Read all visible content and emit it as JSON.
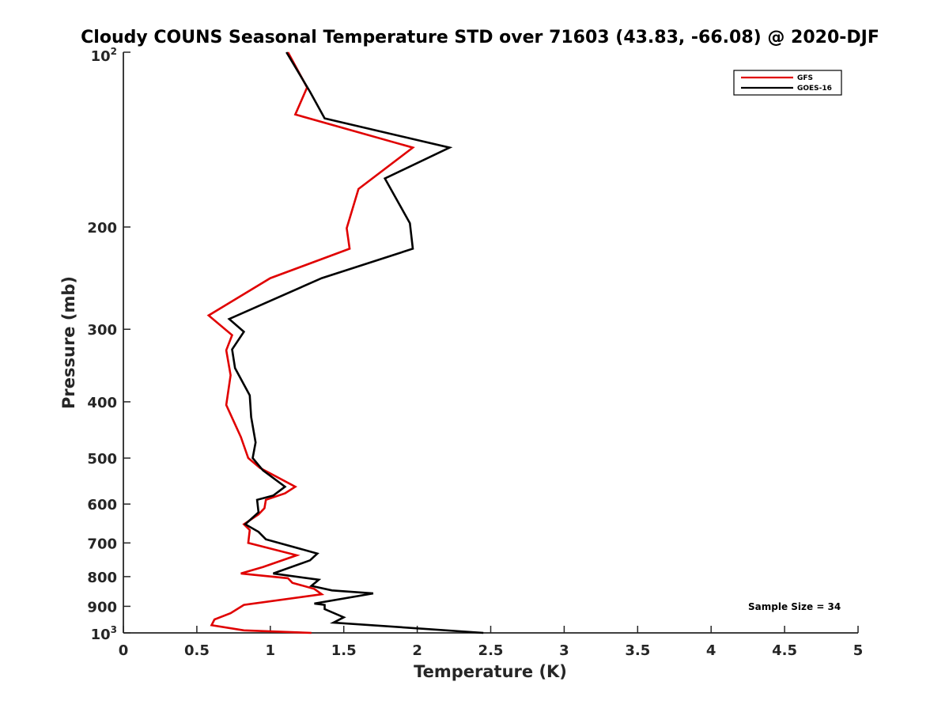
{
  "chart_data": {
    "type": "line",
    "title": "Cloudy COUNS Seasonal Temperature STD over 71603 (43.83, -66.08) @ 2020-DJF",
    "xlabel": "Temperature (K)",
    "ylabel": "Pressure (mb)",
    "xlim": [
      0,
      5
    ],
    "ylim": [
      100,
      1000
    ],
    "yscale": "log",
    "y_reversed": true,
    "x_ticks": [
      0,
      0.5,
      1,
      1.5,
      2,
      2.5,
      3,
      3.5,
      4,
      4.5,
      5
    ],
    "x_tick_labels": [
      "0",
      "0.5",
      "1",
      "1.5",
      "2",
      "2.5",
      "3",
      "3.5",
      "4",
      "4.5",
      "5"
    ],
    "y_ticks": [
      200,
      300,
      400,
      500,
      600,
      700,
      800,
      900
    ],
    "y_tick_labels": [
      "200",
      "300",
      "400",
      "500",
      "600",
      "700",
      "800",
      "900"
    ],
    "y_top_label": {
      "base": "10",
      "exp": "2"
    },
    "y_bottom_label": {
      "base": "10",
      "exp": "3"
    },
    "legend_position": "top-right",
    "annotation": "Sample Size = 34",
    "series": [
      {
        "name": "GFS",
        "color": "#e00000",
        "points": [
          [
            1.12,
            100
          ],
          [
            1.25,
            115
          ],
          [
            1.17,
            128
          ],
          [
            1.97,
            146
          ],
          [
            1.6,
            172
          ],
          [
            1.52,
            201
          ],
          [
            1.54,
            218
          ],
          [
            1.0,
            245
          ],
          [
            0.58,
            284
          ],
          [
            0.74,
            307
          ],
          [
            0.7,
            326
          ],
          [
            0.73,
            360
          ],
          [
            0.7,
            405
          ],
          [
            0.8,
            460
          ],
          [
            0.85,
            500
          ],
          [
            0.93,
            520
          ],
          [
            1.17,
            560
          ],
          [
            1.1,
            575
          ],
          [
            0.97,
            590
          ],
          [
            0.96,
            610
          ],
          [
            0.92,
            625
          ],
          [
            0.82,
            650
          ],
          [
            0.86,
            665
          ],
          [
            0.85,
            700
          ],
          [
            1.18,
            735
          ],
          [
            0.95,
            770
          ],
          [
            0.8,
            790
          ],
          [
            1.12,
            805
          ],
          [
            1.15,
            820
          ],
          [
            1.3,
            840
          ],
          [
            1.35,
            858
          ],
          [
            0.82,
            895
          ],
          [
            0.73,
            925
          ],
          [
            0.62,
            948
          ],
          [
            0.6,
            970
          ],
          [
            0.82,
            990
          ],
          [
            1.28,
            1000
          ]
        ]
      },
      {
        "name": "GOES-16",
        "color": "#000000",
        "points": [
          [
            1.11,
            100
          ],
          [
            1.27,
            117
          ],
          [
            1.37,
            130
          ],
          [
            2.22,
            146
          ],
          [
            1.78,
            165
          ],
          [
            1.95,
            197
          ],
          [
            1.97,
            218
          ],
          [
            1.35,
            245
          ],
          [
            0.72,
            288
          ],
          [
            0.82,
            303
          ],
          [
            0.74,
            325
          ],
          [
            0.76,
            350
          ],
          [
            0.86,
            390
          ],
          [
            0.87,
            425
          ],
          [
            0.9,
            470
          ],
          [
            0.88,
            500
          ],
          [
            0.95,
            525
          ],
          [
            1.1,
            560
          ],
          [
            1.02,
            580
          ],
          [
            0.91,
            590
          ],
          [
            0.92,
            620
          ],
          [
            0.83,
            650
          ],
          [
            0.92,
            670
          ],
          [
            0.97,
            690
          ],
          [
            1.32,
            730
          ],
          [
            1.27,
            750
          ],
          [
            1.02,
            790
          ],
          [
            1.33,
            810
          ],
          [
            1.28,
            830
          ],
          [
            1.42,
            845
          ],
          [
            1.7,
            855
          ],
          [
            1.3,
            890
          ],
          [
            1.37,
            895
          ],
          [
            1.37,
            910
          ],
          [
            1.5,
            940
          ],
          [
            1.43,
            960
          ],
          [
            2.45,
            1000
          ]
        ]
      }
    ]
  }
}
